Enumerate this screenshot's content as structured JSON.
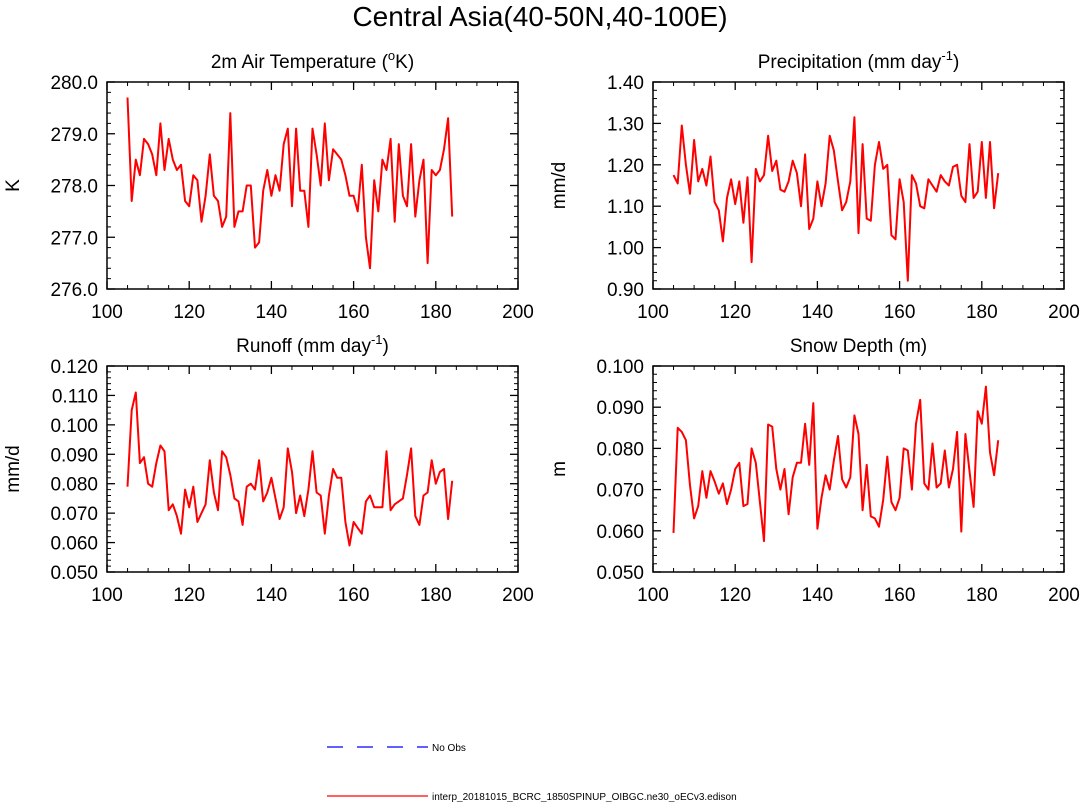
{
  "title": "Central Asia(40-50N,40-100E)",
  "legend": [
    {
      "label": "No Obs",
      "color": "#0000ff",
      "dash": true
    },
    {
      "label": "interp_20181015_BCRC_1850SPINUP_OIBGC.ne30_oECv3.edison",
      "color": "#ff0000",
      "dash": false
    }
  ],
  "chart_data": [
    {
      "type": "line",
      "title_parts": [
        "2m Air Temperature (",
        "o",
        "K)"
      ],
      "title_mode": "super-mid",
      "xlabel": "",
      "ylabel": "K",
      "xlim": [
        100,
        200
      ],
      "ylim": [
        276.0,
        280.0
      ],
      "xticks": [
        100,
        120,
        140,
        160,
        180,
        200
      ],
      "yticks": [
        "276.0",
        "277.0",
        "278.0",
        "279.0",
        "280.0"
      ],
      "ytick_values": [
        276.0,
        277.0,
        278.0,
        279.0,
        280.0
      ],
      "series": [
        {
          "color": "#ff0000",
          "x": [
            105,
            106,
            107,
            108,
            109,
            110,
            111,
            112,
            113,
            114,
            115,
            116,
            117,
            118,
            119,
            120,
            121,
            122,
            123,
            124,
            125,
            126,
            127,
            128,
            129,
            130,
            131,
            132,
            133,
            134,
            135,
            136,
            137,
            138,
            139,
            140,
            141,
            142,
            143,
            144,
            145,
            146,
            147,
            148,
            149,
            150,
            151,
            152,
            153,
            154,
            155,
            156,
            157,
            158,
            159,
            160,
            161,
            162,
            163,
            164,
            165,
            166,
            167,
            168,
            169,
            170,
            171,
            172,
            173,
            174,
            175,
            176,
            177,
            178,
            179,
            180,
            181,
            182,
            183,
            184
          ],
          "y": [
            279.7,
            277.7,
            278.5,
            278.2,
            278.9,
            278.8,
            278.6,
            278.2,
            279.2,
            278.3,
            278.9,
            278.5,
            278.3,
            278.4,
            277.7,
            277.6,
            278.2,
            278.1,
            277.3,
            277.8,
            278.6,
            277.8,
            277.7,
            277.2,
            277.4,
            279.4,
            277.2,
            277.5,
            277.5,
            278.0,
            278.0,
            276.8,
            276.9,
            277.9,
            278.3,
            277.8,
            278.2,
            277.9,
            278.8,
            279.1,
            277.6,
            279.1,
            277.9,
            277.9,
            277.2,
            279.1,
            278.6,
            278.0,
            279.2,
            278.1,
            278.7,
            278.6,
            278.5,
            278.2,
            277.8,
            277.8,
            277.5,
            278.4,
            277.0,
            276.4,
            278.1,
            277.5,
            278.5,
            278.3,
            278.9,
            277.3,
            278.8,
            277.8,
            277.6,
            278.8,
            277.4,
            278.1,
            278.5,
            276.5,
            278.3,
            278.2,
            278.3,
            278.7,
            279.3,
            277.4
          ]
        }
      ]
    },
    {
      "type": "line",
      "title_parts": [
        "Precipitation (mm day",
        "-1",
        ")"
      ],
      "title_mode": "super-end",
      "xlabel": "",
      "ylabel": "mm/d",
      "xlim": [
        100,
        200
      ],
      "ylim": [
        0.9,
        1.4
      ],
      "xticks": [
        100,
        120,
        140,
        160,
        180,
        200
      ],
      "yticks": [
        "0.90",
        "1.00",
        "1.10",
        "1.20",
        "1.30",
        "1.40"
      ],
      "ytick_values": [
        0.9,
        1.0,
        1.1,
        1.2,
        1.3,
        1.4
      ],
      "series": [
        {
          "color": "#ff0000",
          "x": [
            105,
            106,
            107,
            108,
            109,
            110,
            111,
            112,
            113,
            114,
            115,
            116,
            117,
            118,
            119,
            120,
            121,
            122,
            123,
            124,
            125,
            126,
            127,
            128,
            129,
            130,
            131,
            132,
            133,
            134,
            135,
            136,
            137,
            138,
            139,
            140,
            141,
            142,
            143,
            144,
            145,
            146,
            147,
            148,
            149,
            150,
            151,
            152,
            153,
            154,
            155,
            156,
            157,
            158,
            159,
            160,
            161,
            162,
            163,
            164,
            165,
            166,
            167,
            168,
            169,
            170,
            171,
            172,
            173,
            174,
            175,
            176,
            177,
            178,
            179,
            180,
            181,
            182,
            183,
            184
          ],
          "y": [
            1.175,
            1.155,
            1.295,
            1.2,
            1.13,
            1.26,
            1.16,
            1.19,
            1.15,
            1.22,
            1.11,
            1.09,
            1.015,
            1.12,
            1.165,
            1.105,
            1.16,
            1.06,
            1.17,
            0.965,
            1.19,
            1.16,
            1.175,
            1.27,
            1.185,
            1.21,
            1.14,
            1.135,
            1.16,
            1.21,
            1.18,
            1.1,
            1.225,
            1.045,
            1.07,
            1.16,
            1.1,
            1.155,
            1.27,
            1.235,
            1.16,
            1.09,
            1.11,
            1.16,
            1.315,
            1.035,
            1.25,
            1.07,
            1.065,
            1.2,
            1.255,
            1.19,
            1.2,
            1.03,
            1.02,
            1.165,
            1.11,
            0.92,
            1.175,
            1.155,
            1.1,
            1.095,
            1.165,
            1.15,
            1.135,
            1.175,
            1.16,
            1.15,
            1.195,
            1.2,
            1.125,
            1.11,
            1.25,
            1.12,
            1.135,
            1.255,
            1.12,
            1.255,
            1.095,
            1.18
          ]
        }
      ]
    },
    {
      "type": "line",
      "title_parts": [
        "Runoff (mm day",
        "-1",
        ")"
      ],
      "title_mode": "super-end",
      "xlabel": "",
      "ylabel": "mm/d",
      "xlim": [
        100,
        200
      ],
      "ylim": [
        0.05,
        0.12
      ],
      "xticks": [
        100,
        120,
        140,
        160,
        180,
        200
      ],
      "yticks": [
        "0.050",
        "0.060",
        "0.070",
        "0.080",
        "0.090",
        "0.100",
        "0.110",
        "0.120"
      ],
      "ytick_values": [
        0.05,
        0.06,
        0.07,
        0.08,
        0.09,
        0.1,
        0.11,
        0.12
      ],
      "series": [
        {
          "color": "#ff0000",
          "x": [
            105,
            106,
            107,
            108,
            109,
            110,
            111,
            112,
            113,
            114,
            115,
            116,
            117,
            118,
            119,
            120,
            121,
            122,
            123,
            124,
            125,
            126,
            127,
            128,
            129,
            130,
            131,
            132,
            133,
            134,
            135,
            136,
            137,
            138,
            139,
            140,
            141,
            142,
            143,
            144,
            145,
            146,
            147,
            148,
            149,
            150,
            151,
            152,
            153,
            154,
            155,
            156,
            157,
            158,
            159,
            160,
            161,
            162,
            163,
            164,
            165,
            166,
            167,
            168,
            169,
            170,
            171,
            172,
            173,
            174,
            175,
            176,
            177,
            178,
            179,
            180,
            181,
            182,
            183,
            184
          ],
          "y": [
            0.079,
            0.105,
            0.111,
            0.087,
            0.089,
            0.08,
            0.079,
            0.087,
            0.093,
            0.091,
            0.071,
            0.073,
            0.069,
            0.063,
            0.078,
            0.072,
            0.079,
            0.067,
            0.07,
            0.073,
            0.088,
            0.077,
            0.071,
            0.091,
            0.089,
            0.083,
            0.075,
            0.074,
            0.066,
            0.079,
            0.08,
            0.078,
            0.088,
            0.074,
            0.077,
            0.082,
            0.075,
            0.068,
            0.072,
            0.092,
            0.084,
            0.07,
            0.076,
            0.069,
            0.078,
            0.091,
            0.077,
            0.076,
            0.063,
            0.076,
            0.085,
            0.082,
            0.082,
            0.067,
            0.059,
            0.067,
            0.065,
            0.063,
            0.074,
            0.076,
            0.072,
            0.072,
            0.072,
            0.091,
            0.071,
            0.073,
            0.074,
            0.075,
            0.083,
            0.092,
            0.069,
            0.066,
            0.076,
            0.077,
            0.088,
            0.08,
            0.084,
            0.085,
            0.068,
            0.081
          ]
        }
      ]
    },
    {
      "type": "line",
      "title_parts": [
        "Snow Depth (m)"
      ],
      "title_mode": "plain",
      "xlabel": "",
      "ylabel": "m",
      "xlim": [
        100,
        200
      ],
      "ylim": [
        0.05,
        0.1
      ],
      "xticks": [
        100,
        120,
        140,
        160,
        180,
        200
      ],
      "yticks": [
        "0.050",
        "0.060",
        "0.070",
        "0.080",
        "0.090",
        "0.100"
      ],
      "ytick_values": [
        0.05,
        0.06,
        0.07,
        0.08,
        0.09,
        0.1
      ],
      "series": [
        {
          "color": "#ff0000",
          "x": [
            105,
            106,
            107,
            108,
            109,
            110,
            111,
            112,
            113,
            114,
            115,
            116,
            117,
            118,
            119,
            120,
            121,
            122,
            123,
            124,
            125,
            126,
            127,
            128,
            129,
            130,
            131,
            132,
            133,
            134,
            135,
            136,
            137,
            138,
            139,
            140,
            141,
            142,
            143,
            144,
            145,
            146,
            147,
            148,
            149,
            150,
            151,
            152,
            153,
            154,
            155,
            156,
            157,
            158,
            159,
            160,
            161,
            162,
            163,
            164,
            165,
            166,
            167,
            168,
            169,
            170,
            171,
            172,
            173,
            174,
            175,
            176,
            177,
            178,
            179,
            180,
            181,
            182,
            183,
            184
          ],
          "y": [
            0.0595,
            0.085,
            0.084,
            0.082,
            0.071,
            0.063,
            0.066,
            0.0745,
            0.068,
            0.0745,
            0.072,
            0.069,
            0.0715,
            0.0665,
            0.07,
            0.075,
            0.0765,
            0.066,
            0.0665,
            0.08,
            0.0765,
            0.067,
            0.0575,
            0.0858,
            0.0853,
            0.075,
            0.07,
            0.075,
            0.064,
            0.073,
            0.0765,
            0.0765,
            0.086,
            0.076,
            0.091,
            0.0605,
            0.068,
            0.0735,
            0.07,
            0.077,
            0.083,
            0.0725,
            0.0705,
            0.073,
            0.088,
            0.0835,
            0.065,
            0.076,
            0.0635,
            0.063,
            0.061,
            0.0675,
            0.078,
            0.067,
            0.065,
            0.068,
            0.08,
            0.0795,
            0.07,
            0.086,
            0.0918,
            0.0715,
            0.07,
            0.0812,
            0.0705,
            0.0715,
            0.0795,
            0.0705,
            0.075,
            0.084,
            0.0598,
            0.0835,
            0.0745,
            0.0658,
            0.089,
            0.086,
            0.095,
            0.079,
            0.0735,
            0.082
          ]
        }
      ]
    }
  ]
}
